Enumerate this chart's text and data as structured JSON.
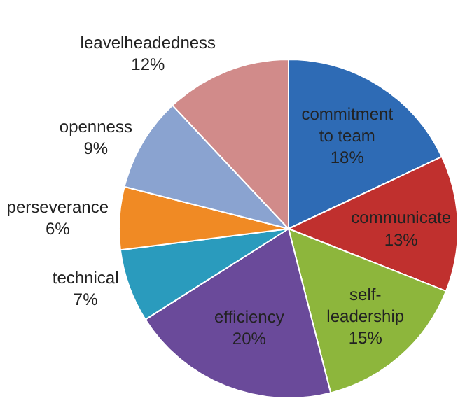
{
  "chart_data": {
    "type": "pie",
    "categories": [
      "commitment to team",
      "communicate",
      "self-leadership",
      "efficiency",
      "technical",
      "perseverance",
      "openness",
      "leavelheadedness"
    ],
    "values": [
      18,
      13,
      15,
      20,
      7,
      6,
      9,
      12
    ],
    "colors": [
      "#2e6bb5",
      "#c0302e",
      "#8db63c",
      "#6a4a9a",
      "#2a9bbd",
      "#f08a24",
      "#8aa3d0",
      "#d18b8a"
    ],
    "value_labels": [
      "18%",
      "13%",
      "15%",
      "20%",
      "7%",
      "6%",
      "9%",
      "12%"
    ],
    "legend": false
  }
}
